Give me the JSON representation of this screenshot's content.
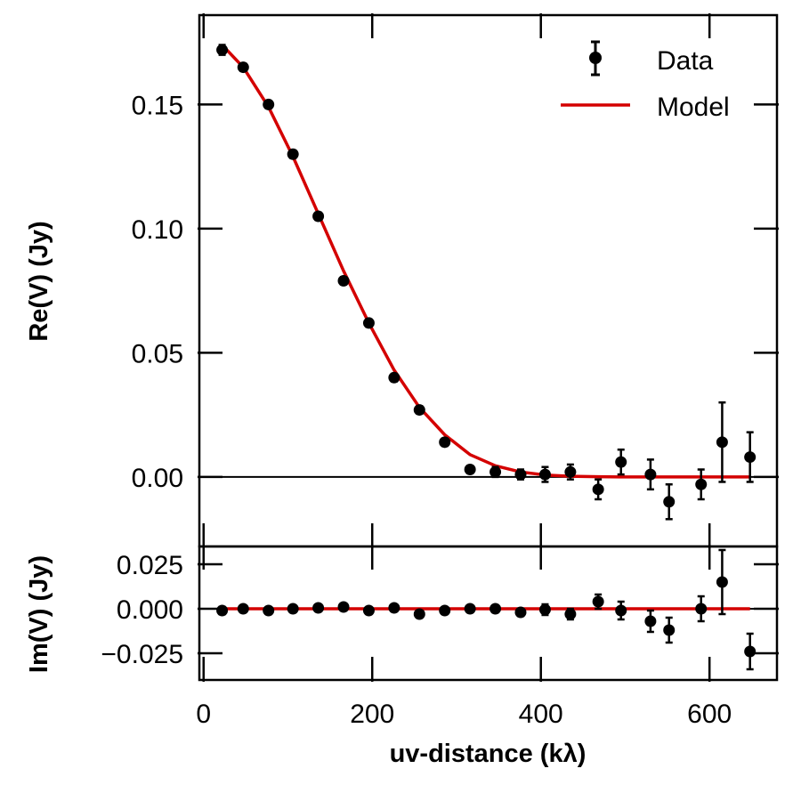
{
  "chart_data": {
    "type": "scatter",
    "shared_x": {
      "label": "uv-distance (kλ)",
      "range": [
        -5,
        680
      ],
      "ticks": [
        0,
        200,
        400,
        600
      ],
      "tick_labels": [
        "0",
        "200",
        "400",
        "600"
      ]
    },
    "legend": {
      "position": "top-right",
      "entries": [
        {
          "label": "Data",
          "kind": "errorbar-point",
          "color": "#000000"
        },
        {
          "label": "Model",
          "kind": "line",
          "color": "#d40000"
        }
      ]
    },
    "panels": [
      {
        "id": "real",
        "ylabel": "Re(V) (Jy)",
        "ylim": [
          -0.028,
          0.186
        ],
        "yticks": [
          0.0,
          0.05,
          0.1,
          0.15
        ],
        "ytick_labels": [
          "0.00",
          "0.05",
          "0.10",
          "0.15"
        ],
        "data": {
          "x": [
            22,
            47,
            77,
            106,
            136,
            166,
            196,
            226,
            256,
            286,
            316,
            346,
            376,
            405,
            435,
            468,
            495,
            530,
            552,
            590,
            615,
            648
          ],
          "y": [
            0.172,
            0.165,
            0.15,
            0.13,
            0.105,
            0.079,
            0.062,
            0.04,
            0.027,
            0.014,
            0.003,
            0.002,
            0.001,
            0.001,
            0.002,
            -0.005,
            0.006,
            0.001,
            -0.01,
            -0.003,
            0.014,
            0.008
          ],
          "err": [
            0.002,
            0.0015,
            0.0015,
            0.0015,
            0.0015,
            0.0015,
            0.0015,
            0.0015,
            0.0015,
            0.0015,
            0.0015,
            0.002,
            0.002,
            0.003,
            0.003,
            0.004,
            0.005,
            0.006,
            0.007,
            0.006,
            0.016,
            0.01
          ]
        },
        "model": {
          "x": [
            22,
            47,
            77,
            106,
            136,
            166,
            196,
            226,
            256,
            286,
            316,
            346,
            376,
            405,
            435,
            468,
            495,
            530,
            552,
            590,
            615,
            648
          ],
          "y": [
            0.174,
            0.165,
            0.149,
            0.129,
            0.106,
            0.083,
            0.062,
            0.043,
            0.028,
            0.017,
            0.009,
            0.0045,
            0.002,
            0.0008,
            0.0003,
            0.0001,
            0.0,
            0.0,
            0.0,
            0.0,
            0.0,
            0.0
          ]
        }
      },
      {
        "id": "imag",
        "ylabel": "Im(V) (Jy)",
        "ylim": [
          -0.04,
          0.035
        ],
        "yticks": [
          -0.025,
          0.0,
          0.025
        ],
        "ytick_labels": [
          "−0.025",
          "0.000",
          "0.025"
        ],
        "data": {
          "x": [
            22,
            47,
            77,
            106,
            136,
            166,
            196,
            226,
            256,
            286,
            316,
            346,
            376,
            405,
            435,
            468,
            495,
            530,
            552,
            590,
            615,
            648
          ],
          "y": [
            -0.001,
            0.0,
            -0.001,
            0.0,
            0.0005,
            0.001,
            -0.001,
            0.0005,
            -0.003,
            -0.001,
            0.0,
            0.0,
            -0.002,
            -0.0005,
            -0.003,
            0.004,
            -0.001,
            -0.007,
            -0.012,
            0.0,
            0.015,
            -0.024
          ],
          "err": [
            0.002,
            0.0015,
            0.0015,
            0.0015,
            0.0015,
            0.0015,
            0.0015,
            0.0015,
            0.0015,
            0.0015,
            0.0015,
            0.002,
            0.002,
            0.003,
            0.003,
            0.004,
            0.005,
            0.006,
            0.007,
            0.007,
            0.018,
            0.01
          ]
        },
        "model": {
          "x": [
            22,
            648
          ],
          "y": [
            0.0,
            0.0
          ]
        }
      }
    ]
  }
}
